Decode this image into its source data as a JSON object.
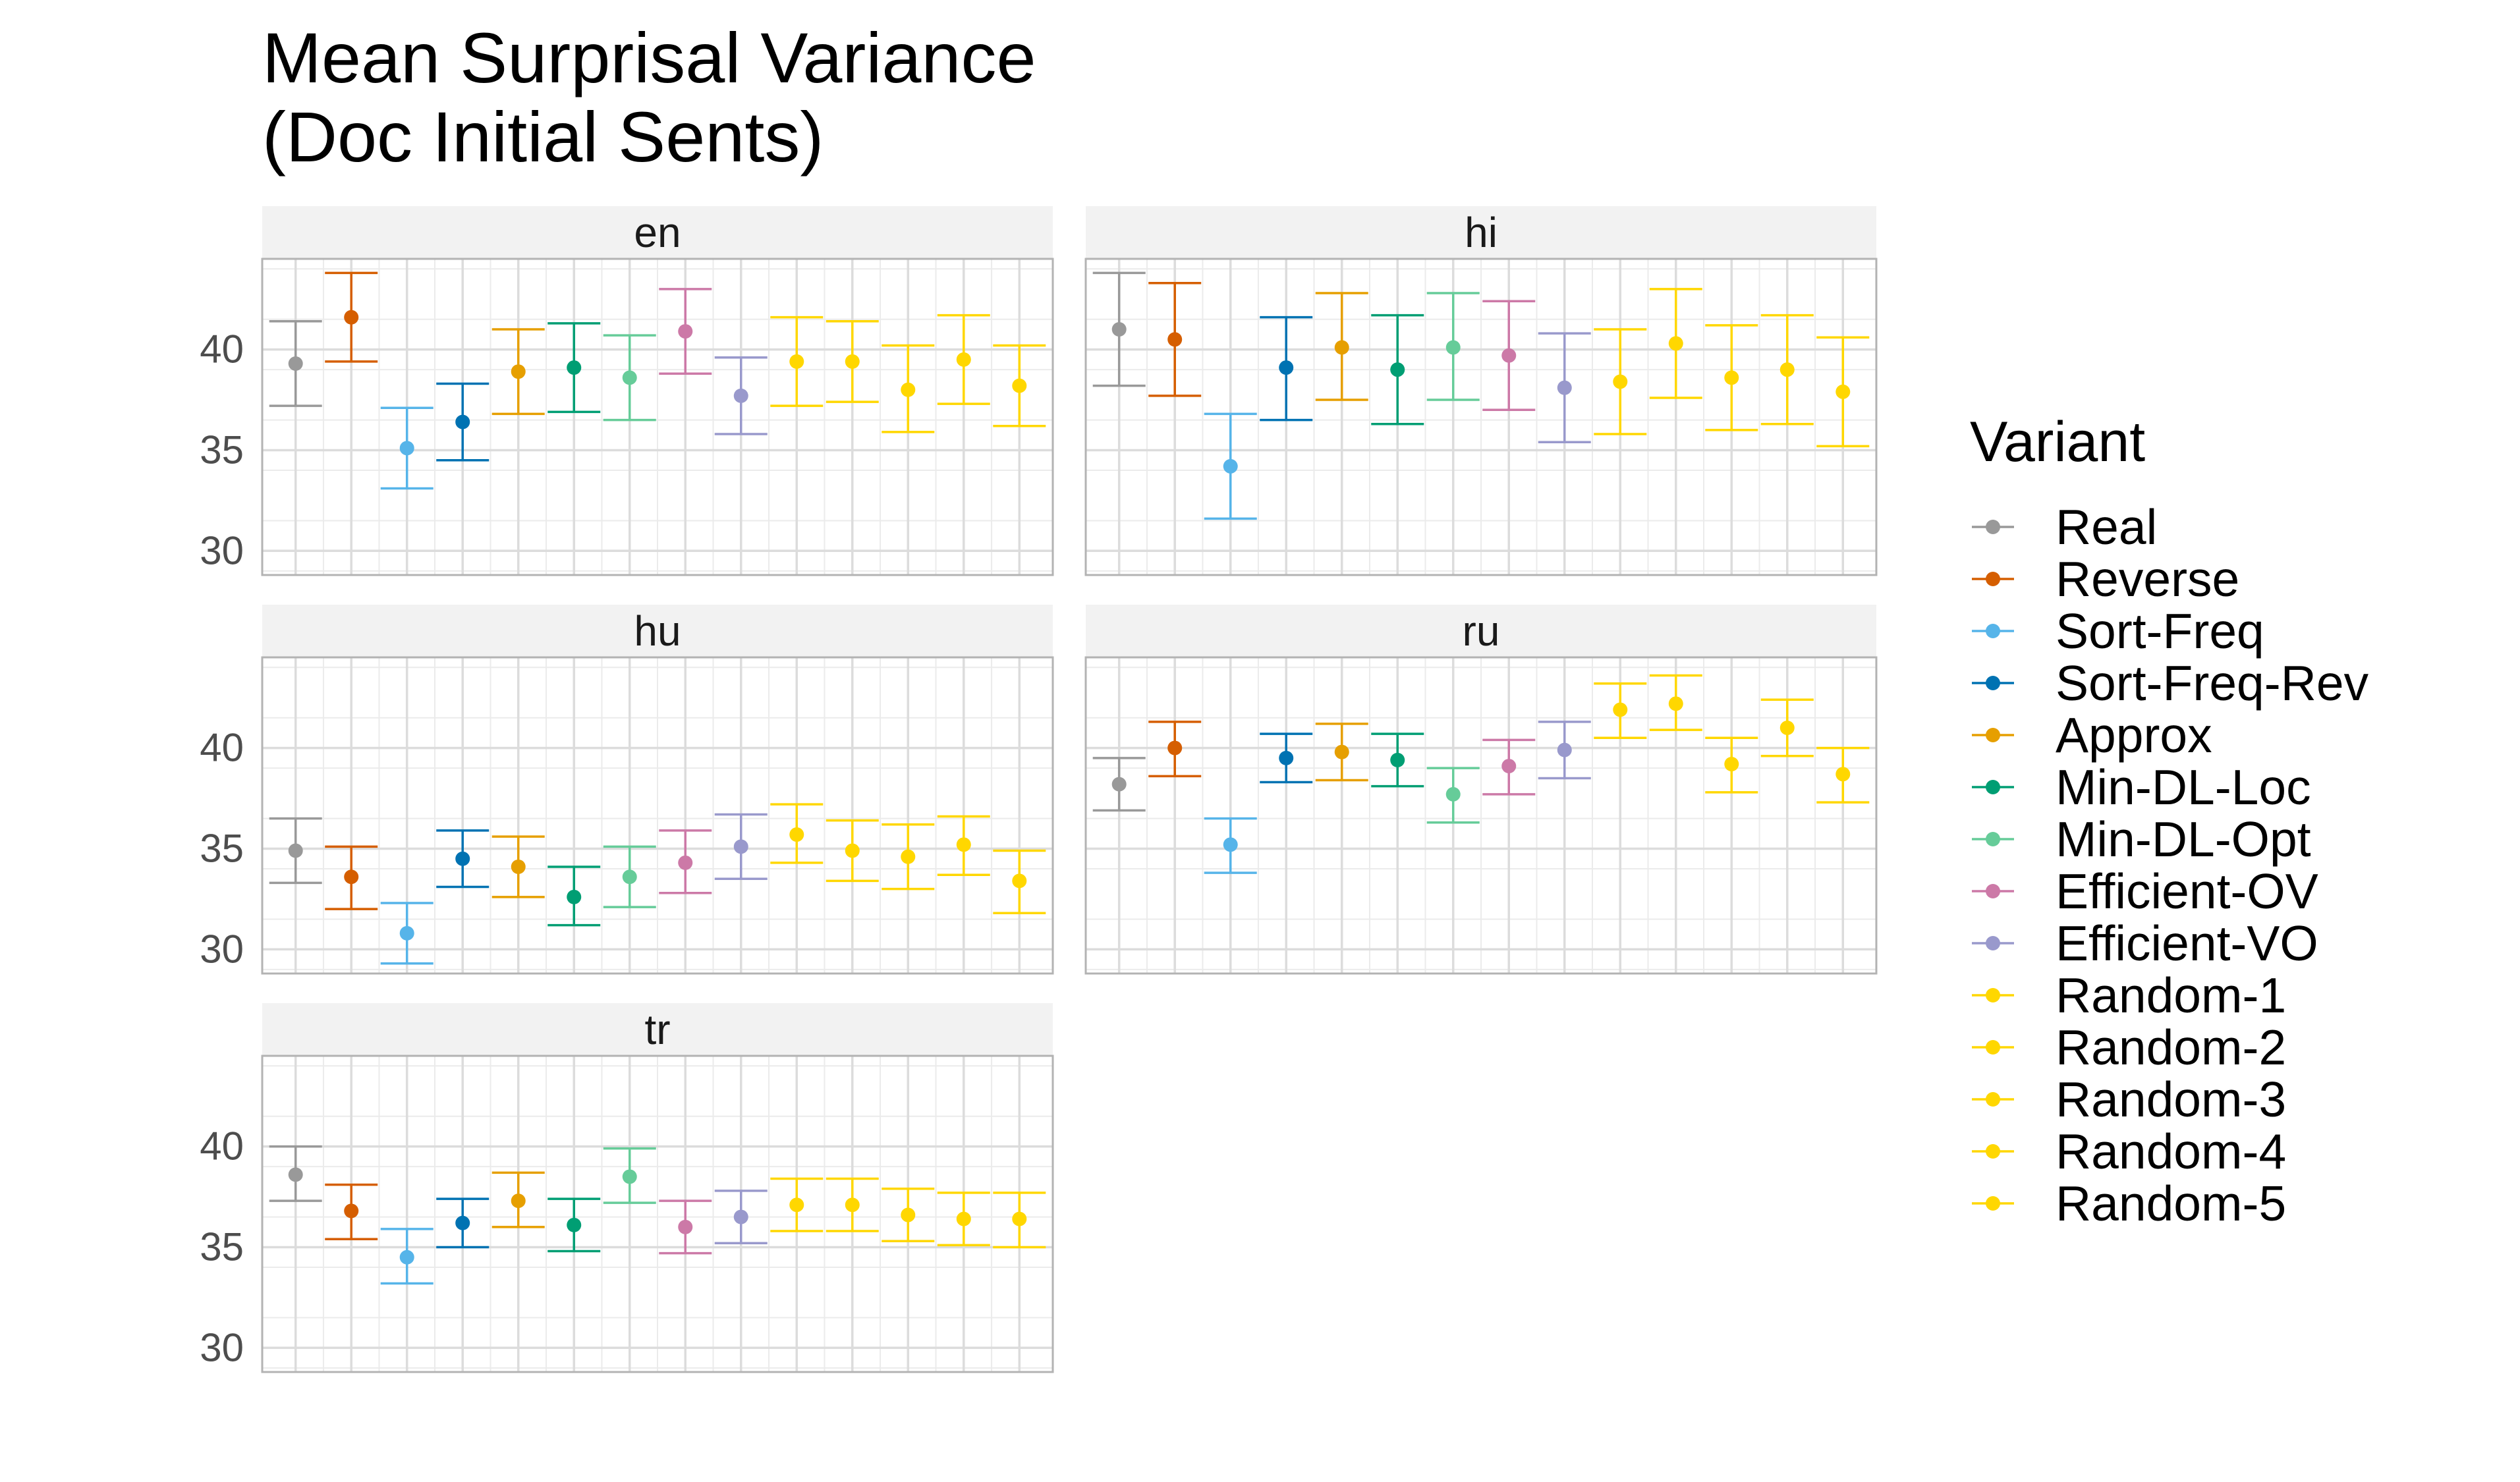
{
  "chart_data": {
    "type": "scatter",
    "subtype": "point-with-errorbars, faceted",
    "title": [
      "Mean Surprisal Variance",
      "(Doc Initial Sents)"
    ],
    "xlabel": "",
    "ylabel": "",
    "ylim": [
      28.8,
      44.5
    ],
    "yticks": [
      30,
      35,
      40
    ],
    "grid": true,
    "legend": {
      "title": "Variant",
      "position": "right"
    },
    "variants": [
      {
        "name": "Real",
        "color": "#999999"
      },
      {
        "name": "Reverse",
        "color": "#D55E00"
      },
      {
        "name": "Sort-Freq",
        "color": "#56B4E9"
      },
      {
        "name": "Sort-Freq-Rev",
        "color": "#0072B2"
      },
      {
        "name": "Approx",
        "color": "#E69F00"
      },
      {
        "name": "Min-DL-Loc",
        "color": "#009E73"
      },
      {
        "name": "Min-DL-Opt",
        "color": "#66CC99"
      },
      {
        "name": "Efficient-OV",
        "color": "#CC79A7"
      },
      {
        "name": "Efficient-VO",
        "color": "#9999CC"
      },
      {
        "name": "Random-1",
        "color": "#FFD700"
      },
      {
        "name": "Random-2",
        "color": "#FFD700"
      },
      {
        "name": "Random-3",
        "color": "#FFD700"
      },
      {
        "name": "Random-4",
        "color": "#FFD700"
      },
      {
        "name": "Random-5",
        "color": "#FFD700"
      }
    ],
    "facets": [
      {
        "name": "en",
        "points": [
          {
            "mean": 39.3,
            "lo": 37.2,
            "hi": 41.4
          },
          {
            "mean": 41.6,
            "lo": 39.4,
            "hi": 43.8
          },
          {
            "mean": 35.1,
            "lo": 33.1,
            "hi": 37.1
          },
          {
            "mean": 36.4,
            "lo": 34.5,
            "hi": 38.3
          },
          {
            "mean": 38.9,
            "lo": 36.8,
            "hi": 41.0
          },
          {
            "mean": 39.1,
            "lo": 36.9,
            "hi": 41.3
          },
          {
            "mean": 38.6,
            "lo": 36.5,
            "hi": 40.7
          },
          {
            "mean": 40.9,
            "lo": 38.8,
            "hi": 43.0
          },
          {
            "mean": 37.7,
            "lo": 35.8,
            "hi": 39.6
          },
          {
            "mean": 39.4,
            "lo": 37.2,
            "hi": 41.6
          },
          {
            "mean": 39.4,
            "lo": 37.4,
            "hi": 41.4
          },
          {
            "mean": 38.0,
            "lo": 35.9,
            "hi": 40.2
          },
          {
            "mean": 39.5,
            "lo": 37.3,
            "hi": 41.7
          },
          {
            "mean": 38.2,
            "lo": 36.2,
            "hi": 40.2
          }
        ]
      },
      {
        "name": "hi",
        "points": [
          {
            "mean": 41.0,
            "lo": 38.2,
            "hi": 43.8
          },
          {
            "mean": 40.5,
            "lo": 37.7,
            "hi": 43.3
          },
          {
            "mean": 34.2,
            "lo": 31.6,
            "hi": 36.8
          },
          {
            "mean": 39.1,
            "lo": 36.5,
            "hi": 41.6
          },
          {
            "mean": 40.1,
            "lo": 37.5,
            "hi": 42.8
          },
          {
            "mean": 39.0,
            "lo": 36.3,
            "hi": 41.7
          },
          {
            "mean": 40.1,
            "lo": 37.5,
            "hi": 42.8
          },
          {
            "mean": 39.7,
            "lo": 37.0,
            "hi": 42.4
          },
          {
            "mean": 38.1,
            "lo": 35.4,
            "hi": 40.8
          },
          {
            "mean": 38.4,
            "lo": 35.8,
            "hi": 41.0
          },
          {
            "mean": 40.3,
            "lo": 37.6,
            "hi": 43.0
          },
          {
            "mean": 38.6,
            "lo": 36.0,
            "hi": 41.2
          },
          {
            "mean": 39.0,
            "lo": 36.3,
            "hi": 41.7
          },
          {
            "mean": 37.9,
            "lo": 35.2,
            "hi": 40.6
          }
        ]
      },
      {
        "name": "hu",
        "points": [
          {
            "mean": 34.9,
            "lo": 33.3,
            "hi": 36.5
          },
          {
            "mean": 33.6,
            "lo": 32.0,
            "hi": 35.1
          },
          {
            "mean": 30.8,
            "lo": 29.3,
            "hi": 32.3
          },
          {
            "mean": 34.5,
            "lo": 33.1,
            "hi": 35.9
          },
          {
            "mean": 34.1,
            "lo": 32.6,
            "hi": 35.6
          },
          {
            "mean": 32.6,
            "lo": 31.2,
            "hi": 34.1
          },
          {
            "mean": 33.6,
            "lo": 32.1,
            "hi": 35.1
          },
          {
            "mean": 34.3,
            "lo": 32.8,
            "hi": 35.9
          },
          {
            "mean": 35.1,
            "lo": 33.5,
            "hi": 36.7
          },
          {
            "mean": 35.7,
            "lo": 34.3,
            "hi": 37.2
          },
          {
            "mean": 34.9,
            "lo": 33.4,
            "hi": 36.4
          },
          {
            "mean": 34.6,
            "lo": 33.0,
            "hi": 36.2
          },
          {
            "mean": 35.2,
            "lo": 33.7,
            "hi": 36.6
          },
          {
            "mean": 33.4,
            "lo": 31.8,
            "hi": 34.9
          }
        ]
      },
      {
        "name": "ru",
        "points": [
          {
            "mean": 38.2,
            "lo": 36.9,
            "hi": 39.5
          },
          {
            "mean": 40.0,
            "lo": 38.6,
            "hi": 41.3
          },
          {
            "mean": 35.2,
            "lo": 33.8,
            "hi": 36.5
          },
          {
            "mean": 39.5,
            "lo": 38.3,
            "hi": 40.7
          },
          {
            "mean": 39.8,
            "lo": 38.4,
            "hi": 41.2
          },
          {
            "mean": 39.4,
            "lo": 38.1,
            "hi": 40.7
          },
          {
            "mean": 37.7,
            "lo": 36.3,
            "hi": 39.0
          },
          {
            "mean": 39.1,
            "lo": 37.7,
            "hi": 40.4
          },
          {
            "mean": 39.9,
            "lo": 38.5,
            "hi": 41.3
          },
          {
            "mean": 41.9,
            "lo": 40.5,
            "hi": 43.2
          },
          {
            "mean": 42.2,
            "lo": 40.9,
            "hi": 43.6
          },
          {
            "mean": 39.2,
            "lo": 37.8,
            "hi": 40.5
          },
          {
            "mean": 41.0,
            "lo": 39.6,
            "hi": 42.4
          },
          {
            "mean": 38.7,
            "lo": 37.3,
            "hi": 40.0
          }
        ]
      },
      {
        "name": "tr",
        "points": [
          {
            "mean": 38.6,
            "lo": 37.3,
            "hi": 40.0
          },
          {
            "mean": 36.8,
            "lo": 35.4,
            "hi": 38.1
          },
          {
            "mean": 34.5,
            "lo": 33.2,
            "hi": 35.9
          },
          {
            "mean": 36.2,
            "lo": 35.0,
            "hi": 37.4
          },
          {
            "mean": 37.3,
            "lo": 36.0,
            "hi": 38.7
          },
          {
            "mean": 36.1,
            "lo": 34.8,
            "hi": 37.4
          },
          {
            "mean": 38.5,
            "lo": 37.2,
            "hi": 39.9
          },
          {
            "mean": 36.0,
            "lo": 34.7,
            "hi": 37.3
          },
          {
            "mean": 36.5,
            "lo": 35.2,
            "hi": 37.8
          },
          {
            "mean": 37.1,
            "lo": 35.8,
            "hi": 38.4
          },
          {
            "mean": 37.1,
            "lo": 35.8,
            "hi": 38.4
          },
          {
            "mean": 36.6,
            "lo": 35.3,
            "hi": 37.9
          },
          {
            "mean": 36.4,
            "lo": 35.1,
            "hi": 37.7
          },
          {
            "mean": 36.4,
            "lo": 35.0,
            "hi": 37.7
          }
        ]
      }
    ]
  }
}
